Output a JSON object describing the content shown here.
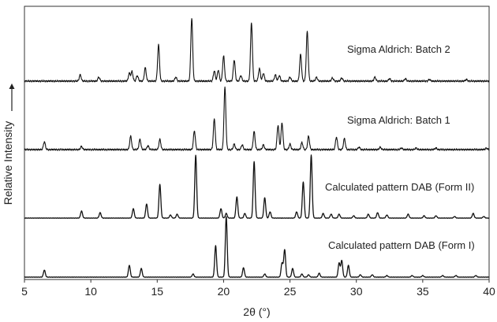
{
  "chart_data": {
    "type": "line",
    "xlabel": "2θ (°)",
    "ylabel": "Relative Intensity",
    "xlim": [
      5,
      40
    ],
    "x_ticks": [
      "5",
      "10",
      "15",
      "20",
      "25",
      "30",
      "35",
      "40"
    ],
    "grid": false,
    "series": [
      {
        "name": "Sigma Aldrich: Batch 2",
        "peaks": [
          [
            9.2,
            8
          ],
          [
            10.6,
            5
          ],
          [
            12.9,
            10
          ],
          [
            13.1,
            12
          ],
          [
            13.5,
            7
          ],
          [
            14.1,
            17
          ],
          [
            15.1,
            46
          ],
          [
            16.4,
            5
          ],
          [
            17.6,
            80
          ],
          [
            19.3,
            13
          ],
          [
            19.6,
            14
          ],
          [
            20.0,
            32
          ],
          [
            20.8,
            27
          ],
          [
            21.3,
            7
          ],
          [
            22.1,
            74
          ],
          [
            22.7,
            16
          ],
          [
            23.0,
            10
          ],
          [
            23.9,
            8
          ],
          [
            24.2,
            7
          ],
          [
            25.0,
            5
          ],
          [
            25.8,
            34
          ],
          [
            26.3,
            63
          ],
          [
            27.0,
            5
          ],
          [
            28.2,
            4
          ],
          [
            28.9,
            4
          ],
          [
            31.4,
            5
          ],
          [
            32.5,
            3
          ],
          [
            33.7,
            3
          ],
          [
            35.5,
            2
          ],
          [
            38.3,
            2
          ]
        ]
      },
      {
        "name": "Sigma Aldrich: Batch 1",
        "peaks": [
          [
            6.5,
            10
          ],
          [
            9.3,
            4
          ],
          [
            13.0,
            17
          ],
          [
            13.7,
            13
          ],
          [
            14.3,
            5
          ],
          [
            15.2,
            13
          ],
          [
            17.8,
            24
          ],
          [
            19.3,
            39
          ],
          [
            20.1,
            79
          ],
          [
            20.8,
            7
          ],
          [
            21.4,
            6
          ],
          [
            22.3,
            23
          ],
          [
            23.0,
            6
          ],
          [
            24.1,
            31
          ],
          [
            24.4,
            34
          ],
          [
            25.0,
            7
          ],
          [
            25.9,
            9
          ],
          [
            26.4,
            17
          ],
          [
            28.5,
            16
          ],
          [
            29.1,
            14
          ],
          [
            30.2,
            3
          ],
          [
            31.8,
            3
          ],
          [
            33.4,
            2
          ],
          [
            34.5,
            2
          ],
          [
            36.0,
            2
          ],
          [
            39.8,
            2
          ]
        ]
      },
      {
        "name": "Calculated pattern DAB (Form II)",
        "peaks": [
          [
            9.3,
            9
          ],
          [
            10.7,
            7
          ],
          [
            13.2,
            12
          ],
          [
            14.2,
            18
          ],
          [
            15.2,
            43
          ],
          [
            16.0,
            4
          ],
          [
            16.5,
            5
          ],
          [
            17.9,
            80
          ],
          [
            19.8,
            12
          ],
          [
            20.2,
            6
          ],
          [
            21.0,
            27
          ],
          [
            21.6,
            6
          ],
          [
            22.3,
            72
          ],
          [
            23.1,
            26
          ],
          [
            23.5,
            8
          ],
          [
            25.5,
            8
          ],
          [
            26.0,
            46
          ],
          [
            26.6,
            80
          ],
          [
            27.5,
            6
          ],
          [
            28.1,
            5
          ],
          [
            28.7,
            5
          ],
          [
            29.8,
            3
          ],
          [
            30.9,
            5
          ],
          [
            31.6,
            7
          ],
          [
            32.3,
            4
          ],
          [
            33.9,
            5
          ],
          [
            35.1,
            3
          ],
          [
            36.0,
            3
          ],
          [
            37.4,
            2
          ],
          [
            38.8,
            6
          ],
          [
            39.6,
            2
          ]
        ]
      },
      {
        "name": "Calculated pattern DAB (Form I)",
        "peaks": [
          [
            6.5,
            9
          ],
          [
            12.9,
            15
          ],
          [
            13.8,
            11
          ],
          [
            17.7,
            4
          ],
          [
            19.4,
            40
          ],
          [
            20.2,
            77
          ],
          [
            21.5,
            12
          ],
          [
            23.1,
            4
          ],
          [
            24.4,
            18
          ],
          [
            24.6,
            35
          ],
          [
            25.2,
            11
          ],
          [
            25.9,
            4
          ],
          [
            26.4,
            3
          ],
          [
            27.2,
            5
          ],
          [
            28.7,
            18
          ],
          [
            28.9,
            21
          ],
          [
            29.4,
            15
          ],
          [
            30.3,
            3
          ],
          [
            31.2,
            3
          ],
          [
            32.3,
            2
          ],
          [
            34.2,
            2
          ],
          [
            35.0,
            2
          ],
          [
            36.5,
            2
          ],
          [
            37.5,
            2
          ],
          [
            39.0,
            2
          ]
        ]
      }
    ]
  }
}
